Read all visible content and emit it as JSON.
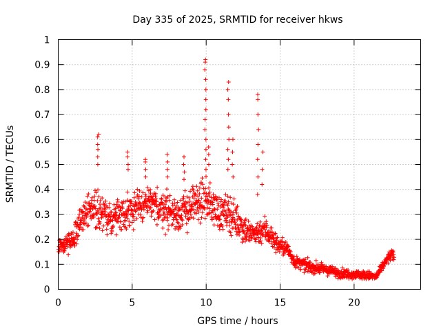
{
  "chart_data": {
    "type": "scatter",
    "title": "Day 335 of 2025, SRMTID for receiver hkws",
    "xlabel": "GPS time / hours",
    "ylabel": "SRMTID / TECUs",
    "xlim": [
      0,
      24.5
    ],
    "ylim": [
      0,
      1
    ],
    "x_ticks": [
      0,
      5,
      10,
      15,
      20
    ],
    "y_ticks": [
      0,
      0.1,
      0.2,
      0.3,
      0.4,
      0.5,
      0.6,
      0.7,
      0.8,
      0.9,
      1
    ],
    "x_tick_labels": [
      "0",
      "5",
      "10",
      "15",
      "20"
    ],
    "y_tick_labels": [
      "0",
      "0.1",
      "0.2",
      "0.3",
      "0.4",
      "0.5",
      "0.6",
      "0.7",
      "0.8",
      "0.9",
      "1"
    ],
    "grid": true,
    "marker": "+",
    "marker_color": "#ff0000",
    "series": [
      {
        "name": "SRMTID",
        "profile": {
          "x": [
            0,
            0.5,
            1,
            1.5,
            2,
            2.5,
            3,
            3.5,
            4,
            5,
            6,
            7,
            8,
            9,
            9.5,
            10,
            10.5,
            11,
            11.5,
            12,
            12.5,
            13,
            13.5,
            14,
            14.3,
            14.8,
            15.5,
            16,
            17,
            18,
            19,
            20,
            21,
            21.5,
            22,
            22.5,
            22.7
          ],
          "y": [
            0.17,
            0.18,
            0.2,
            0.28,
            0.32,
            0.33,
            0.3,
            0.28,
            0.3,
            0.32,
            0.34,
            0.33,
            0.3,
            0.33,
            0.35,
            0.36,
            0.33,
            0.3,
            0.31,
            0.28,
            0.25,
            0.22,
            0.23,
            0.24,
            0.22,
            0.18,
            0.16,
            0.11,
            0.09,
            0.08,
            0.065,
            0.06,
            0.055,
            0.05,
            0.1,
            0.14,
            0.13
          ],
          "spread": [
            0.03,
            0.04,
            0.05,
            0.06,
            0.07,
            0.08,
            0.07,
            0.06,
            0.07,
            0.08,
            0.08,
            0.08,
            0.08,
            0.08,
            0.08,
            0.08,
            0.08,
            0.07,
            0.08,
            0.07,
            0.07,
            0.05,
            0.05,
            0.06,
            0.05,
            0.04,
            0.03,
            0.025,
            0.025,
            0.02,
            0.02,
            0.018,
            0.018,
            0.015,
            0.02,
            0.025,
            0.02
          ]
        },
        "spikes": [
          {
            "x": 2.7,
            "y": [
              0.5,
              0.53,
              0.56,
              0.58,
              0.61,
              0.62
            ]
          },
          {
            "x": 4.7,
            "y": [
              0.48,
              0.5,
              0.53,
              0.55
            ]
          },
          {
            "x": 5.9,
            "y": [
              0.45,
              0.48,
              0.51,
              0.52
            ]
          },
          {
            "x": 7.4,
            "y": [
              0.45,
              0.48,
              0.51,
              0.54
            ]
          },
          {
            "x": 8.5,
            "y": [
              0.44,
              0.47,
              0.5,
              0.53
            ]
          },
          {
            "x": 9.95,
            "y": [
              0.48,
              0.52,
              0.56,
              0.6,
              0.64,
              0.68,
              0.72,
              0.76,
              0.8,
              0.84,
              0.88,
              0.91,
              0.92
            ]
          },
          {
            "x": 10.2,
            "y": [
              0.5,
              0.54,
              0.57
            ]
          },
          {
            "x": 11.5,
            "y": [
              0.48,
              0.52,
              0.56,
              0.6,
              0.65,
              0.7,
              0.76,
              0.8,
              0.83
            ]
          },
          {
            "x": 11.8,
            "y": [
              0.45,
              0.5,
              0.55,
              0.6
            ]
          },
          {
            "x": 13.5,
            "y": [
              0.38,
              0.45,
              0.52,
              0.58,
              0.64,
              0.7,
              0.76,
              0.78
            ]
          },
          {
            "x": 13.8,
            "y": [
              0.42,
              0.48,
              0.55
            ]
          }
        ]
      }
    ]
  }
}
